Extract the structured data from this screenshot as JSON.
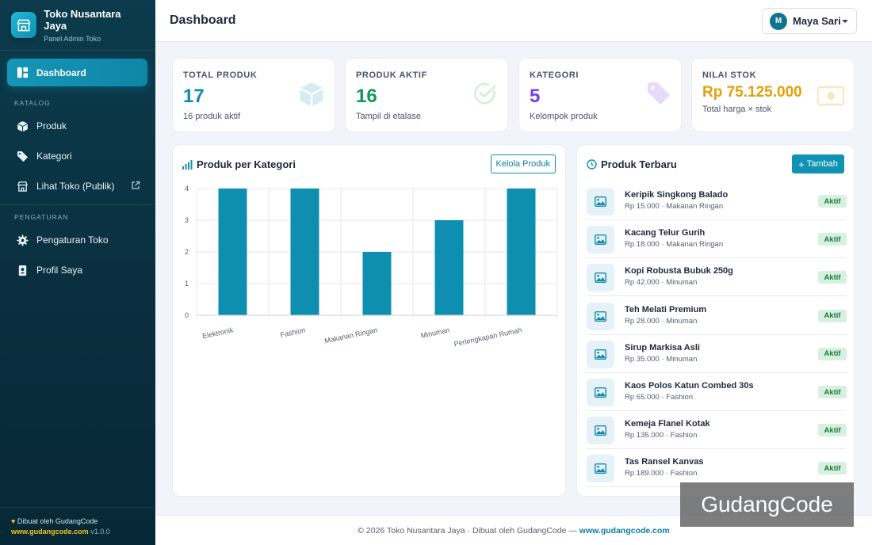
{
  "brand": {
    "title": "Toko Nusantara Jaya",
    "subtitle": "Panel Admin Toko"
  },
  "sidebar": {
    "active": {
      "label": "Dashboard",
      "icon": "dashboard-icon"
    },
    "sections": [
      {
        "title": "KATALOG",
        "items": [
          {
            "label": "Produk",
            "icon": "box-icon"
          },
          {
            "label": "Kategori",
            "icon": "tag-icon"
          },
          {
            "label": "Lihat Toko (Publik)",
            "icon": "store-icon",
            "external": true
          }
        ]
      },
      {
        "title": "PENGATURAN",
        "items": [
          {
            "label": "Pengaturan Toko",
            "icon": "gear-icon"
          },
          {
            "label": "Profil Saya",
            "icon": "id-card-icon"
          }
        ]
      }
    ],
    "footer": {
      "made_by": "Dibuat oleh GudangCode",
      "link": "www.gudangcode.com",
      "version": "v1.0.0"
    }
  },
  "header": {
    "title": "Dashboard",
    "user_initial": "M",
    "user_name": "Maya Sari"
  },
  "stats": [
    {
      "label": "TOTAL PRODUK",
      "value": "17",
      "sub": "16 produk aktif",
      "color": "#1288ad",
      "icon": "box-icon"
    },
    {
      "label": "PRODUK AKTIF",
      "value": "16",
      "sub": "Tampil di etalase",
      "color": "#13955e",
      "icon": "check-circle-icon"
    },
    {
      "label": "KATEGORI",
      "value": "5",
      "sub": "Kelompok produk",
      "color": "#7c3aed",
      "icon": "tag-icon"
    },
    {
      "label": "NILAI STOK",
      "value": "Rp 75.125.000",
      "sub": "Total harga × stok",
      "color": "#e3a008",
      "icon": "money-icon"
    }
  ],
  "chart_panel": {
    "title": "Produk per Kategori",
    "button": "Kelola Produk"
  },
  "chart_data": {
    "type": "bar",
    "title": "Produk per Kategori",
    "categories": [
      "Elektronik",
      "Fashion",
      "Makanan Ringan",
      "Minuman",
      "Perlengkapan Rumah"
    ],
    "values": [
      4,
      4,
      2,
      3,
      4
    ],
    "ylim": [
      0,
      4
    ],
    "yticks": [
      "0",
      "1",
      "2",
      "3",
      "4"
    ],
    "grid": true,
    "bar_color": "#0e8fb0"
  },
  "products_panel": {
    "title": "Produk Terbaru",
    "button": "Tambah"
  },
  "products": [
    {
      "name": "Keripik Singkong Balado",
      "meta": "Rp 15.000 · Makanan Ringan",
      "status": "Aktif"
    },
    {
      "name": "Kacang Telur Gurih",
      "meta": "Rp 18.000 · Makanan Ringan",
      "status": "Aktif"
    },
    {
      "name": "Kopi Robusta Bubuk 250g",
      "meta": "Rp 42.000 · Minuman",
      "status": "Aktif"
    },
    {
      "name": "Teh Melati Premium",
      "meta": "Rp 28.000 · Minuman",
      "status": "Aktif"
    },
    {
      "name": "Sirup Markisa Asli",
      "meta": "Rp 35.000 · Minuman",
      "status": "Aktif"
    },
    {
      "name": "Kaos Polos Katun Combed 30s",
      "meta": "Rp 65.000 · Fashion",
      "status": "Aktif"
    },
    {
      "name": "Kemeja Flanel Kotak",
      "meta": "Rp 135.000 · Fashion",
      "status": "Aktif"
    },
    {
      "name": "Tas Ransel Kanvas",
      "meta": "Rp 189.000 · Fashion",
      "status": "Aktif"
    }
  ],
  "footer": {
    "text": "© 2026 Toko Nusantara Jaya · Dibuat oleh GudangCode —",
    "link": "www.gudangcode.com"
  },
  "watermark": "GudangCode"
}
